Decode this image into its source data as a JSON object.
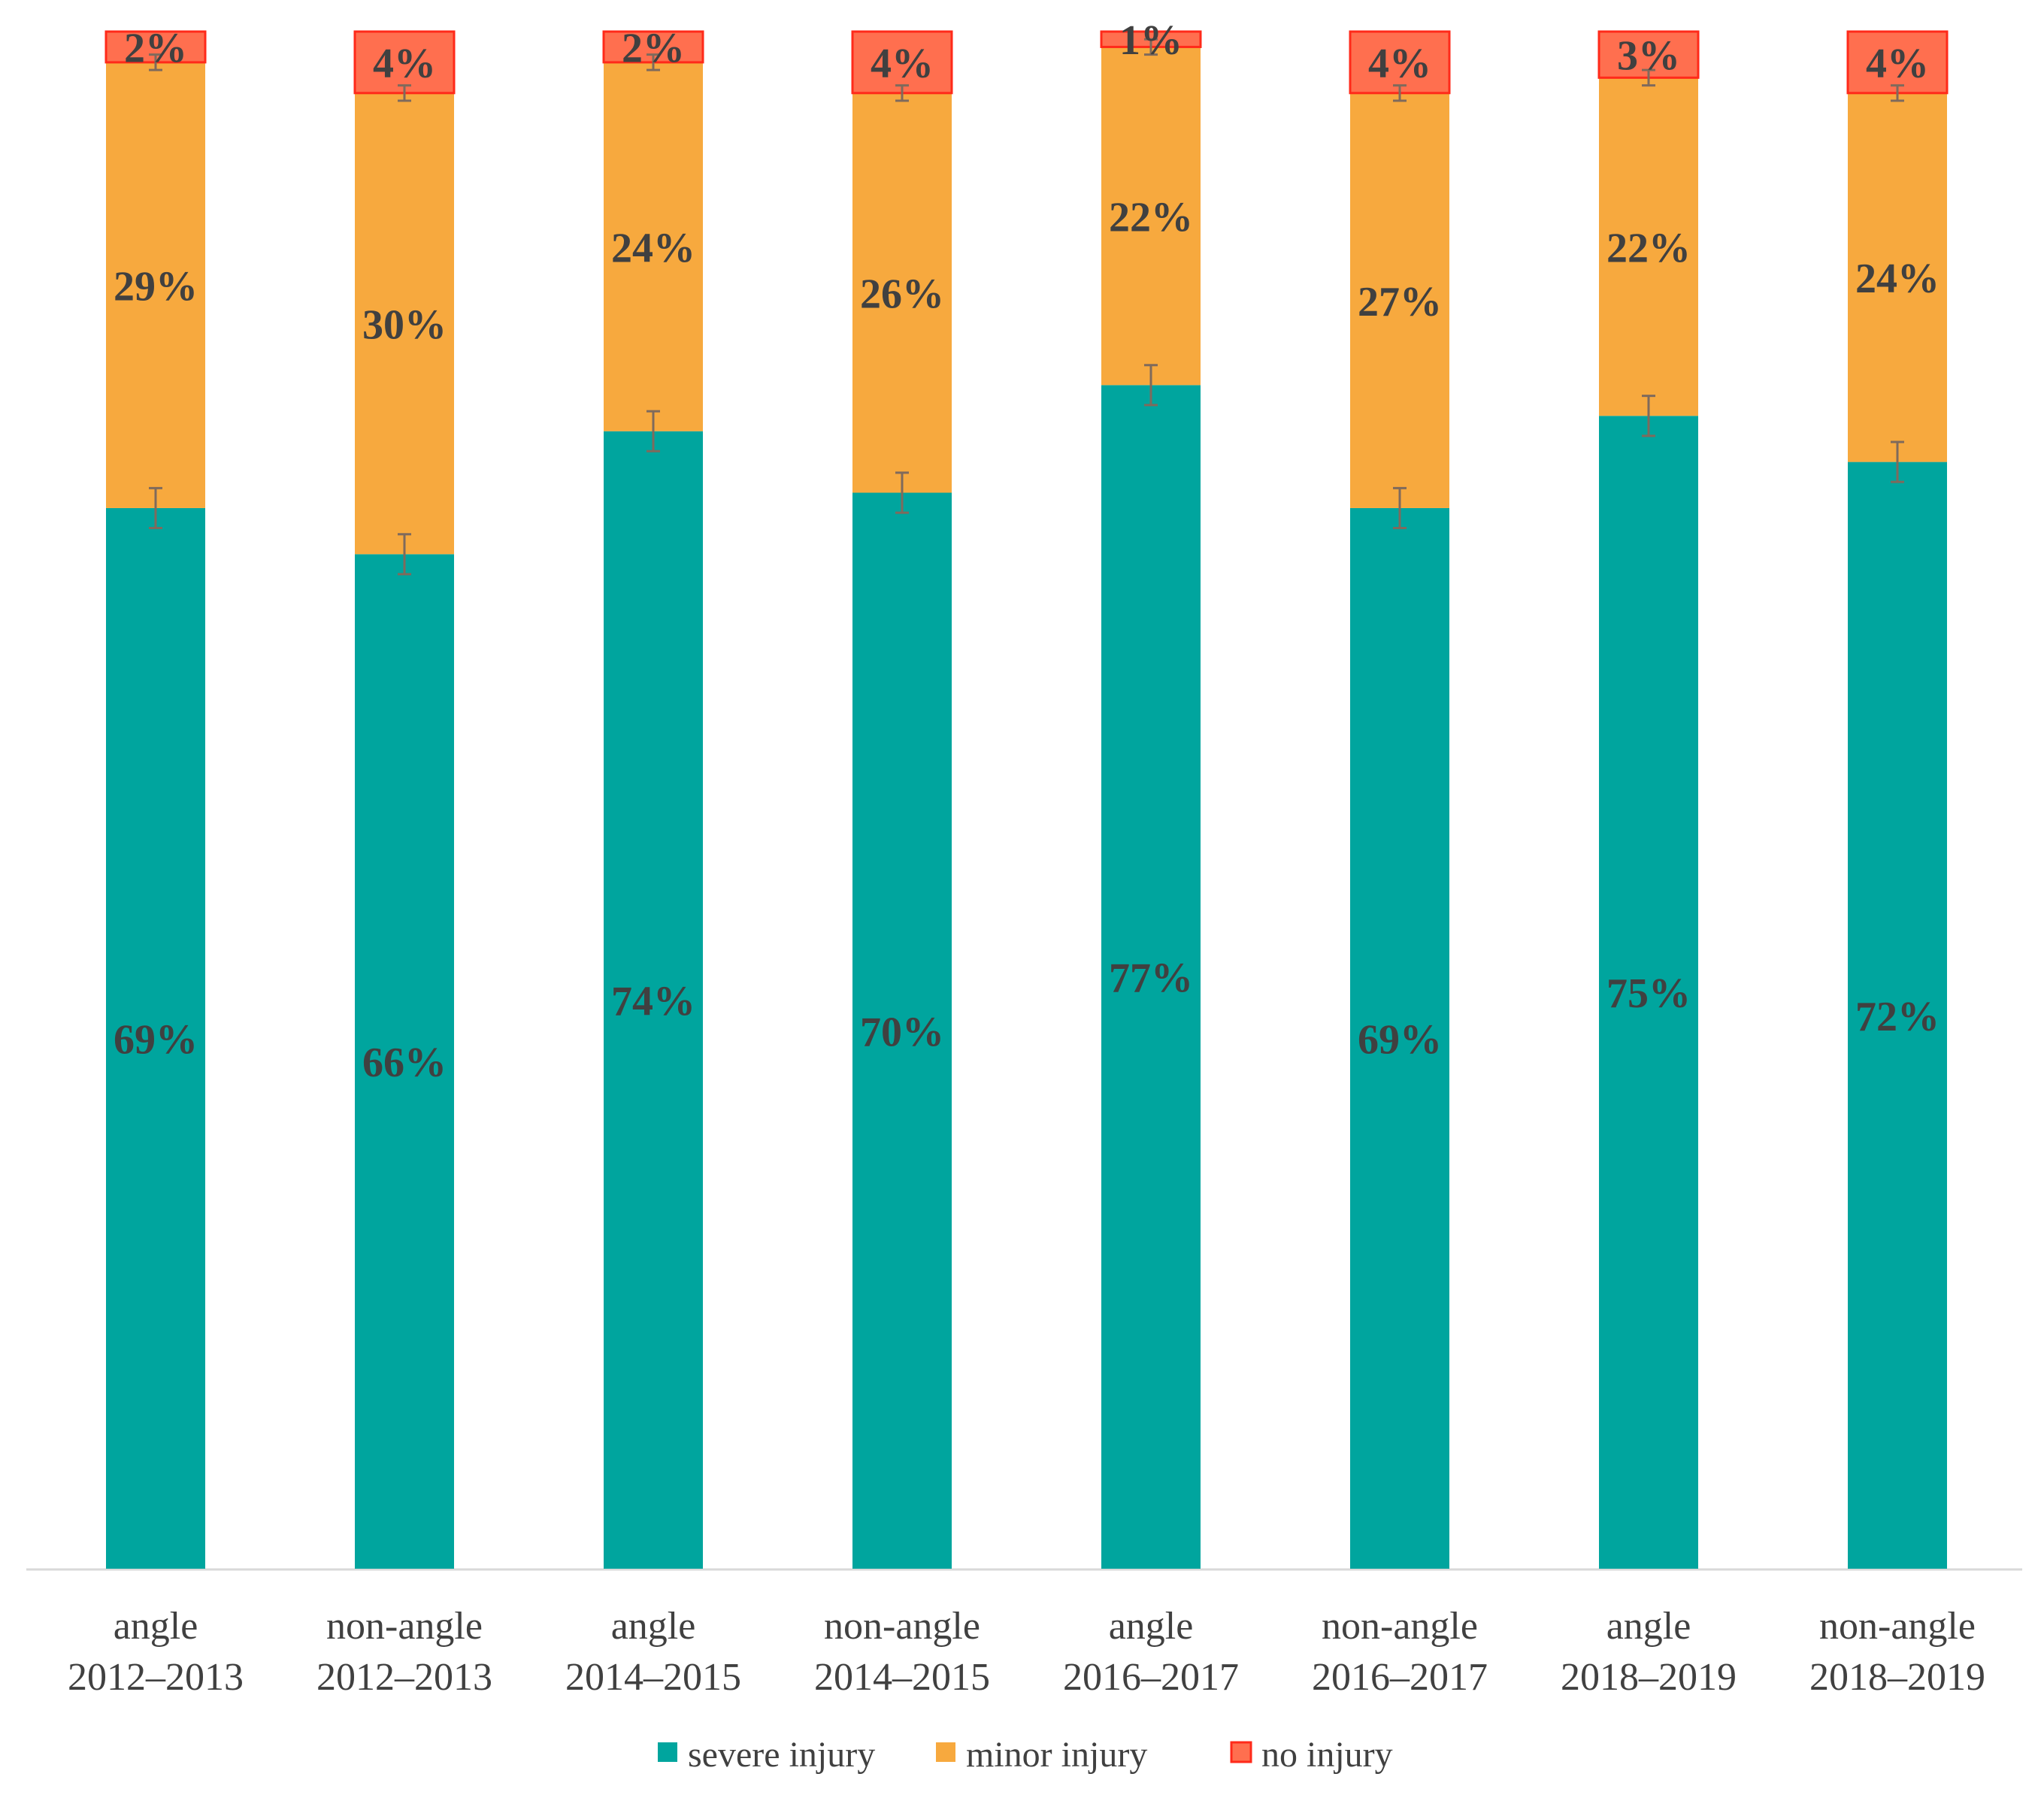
{
  "chart_data": {
    "type": "bar",
    "stacked": true,
    "categories": [
      [
        "angle",
        "2012–2013"
      ],
      [
        "non-angle",
        "2012–2013"
      ],
      [
        "angle",
        "2014–2015"
      ],
      [
        "non-angle",
        "2014–2015"
      ],
      [
        "angle",
        "2016–2017"
      ],
      [
        "non-angle",
        "2016–2017"
      ],
      [
        "angle",
        "2018–2019"
      ],
      [
        "non-angle",
        "2018–2019"
      ]
    ],
    "series": [
      {
        "name": "severe injury",
        "color": "#00A59E",
        "values": [
          69,
          66,
          74,
          70,
          77,
          69,
          75,
          72
        ],
        "labels": [
          "69%",
          "66%",
          "74%",
          "70%",
          "77%",
          "69%",
          "75%",
          "72%"
        ],
        "error": 1.3
      },
      {
        "name": "minor injury",
        "color": "#F7A93E",
        "values": [
          29,
          30,
          24,
          26,
          22,
          27,
          22,
          24
        ],
        "labels": [
          "29%",
          "30%",
          "24%",
          "26%",
          "22%",
          "27%",
          "22%",
          "24%"
        ],
        "error": 0.5
      },
      {
        "name": "no injury",
        "color": "#FF6F4F",
        "border": "#FF2A1A",
        "values": [
          2,
          4,
          2,
          4,
          1,
          4,
          3,
          4
        ],
        "labels": [
          "2%",
          "4%",
          "2%",
          "4%",
          "1%",
          "4%",
          "3%",
          "4%"
        ]
      }
    ],
    "ylim": [
      0,
      100
    ],
    "legend": "bottom-center",
    "grid": false,
    "xlabel": "",
    "ylabel": "",
    "title": ""
  }
}
